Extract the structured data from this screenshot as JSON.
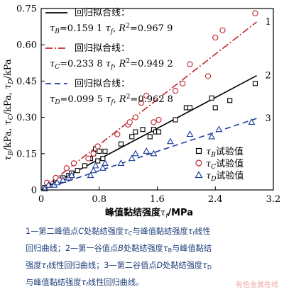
{
  "chart_data": {
    "type": "scatter",
    "xlabel": "峰值黏结强度τf/MPa",
    "ylabel": "τB/kPa, τC/kPa, τD/kPa",
    "xlim": [
      0,
      3.2
    ],
    "ylim": [
      0,
      0.75
    ],
    "xticks": [
      0,
      0.8,
      1.6,
      2.4,
      3.2
    ],
    "yticks": [
      0,
      0.15,
      0.3,
      0.45,
      0.6,
      0.75
    ],
    "xtick_labels": [
      "0",
      "0.8",
      "1.6",
      "2.4",
      "3.2"
    ],
    "ytick_labels": [
      "0",
      "0.15",
      "0.30",
      "0.45",
      "0.60",
      "0.75"
    ],
    "legend_position": "bottom-right",
    "fits": [
      {
        "title": "回归拟合线：",
        "eq_var": "τB",
        "slope_text": "0.159 1",
        "r2_text": "0.967 9",
        "slope": 0.1591,
        "line_label": "2",
        "color": "#000000",
        "dash": ""
      },
      {
        "title": "回归拟合线：",
        "eq_var": "τC",
        "slope_text": "0.233 8",
        "r2_text": "0.949 2",
        "slope": 0.2338,
        "line_label": "1",
        "color": "#c0272d",
        "dash": "10,3,2,3"
      },
      {
        "title": "回归拟合线：",
        "eq_var": "τD",
        "slope_text": "0.099 5",
        "r2_text": "0.962 8",
        "slope": 0.0995,
        "line_label": "3",
        "color": "#1c3c9c",
        "dash": "8,5"
      }
    ],
    "series": [
      {
        "name": "τB试验值",
        "marker": "square",
        "color": "#000000",
        "x": [
          0.05,
          0.1,
          0.2,
          0.22,
          0.3,
          0.38,
          0.42,
          0.5,
          0.6,
          0.68,
          0.72,
          0.75,
          0.78,
          0.8,
          0.85,
          0.88,
          1.1,
          1.25,
          1.3,
          1.4,
          1.5,
          1.55,
          1.58,
          1.62,
          1.85,
          2.0,
          2.05,
          2.35,
          2.4,
          2.6,
          2.95
        ],
        "y": [
          0.01,
          0.02,
          0.04,
          0.04,
          0.05,
          0.06,
          0.07,
          0.08,
          0.1,
          0.13,
          0.15,
          0.17,
          0.12,
          0.16,
          0.13,
          0.16,
          0.19,
          0.22,
          0.24,
          0.25,
          0.22,
          0.25,
          0.24,
          0.24,
          0.29,
          0.34,
          0.34,
          0.38,
          0.34,
          0.37,
          0.44
        ]
      },
      {
        "name": "τC试验值",
        "marker": "circle",
        "color": "#c0272d",
        "x": [
          0.08,
          0.2,
          0.25,
          0.35,
          0.4,
          0.45,
          0.65,
          0.72,
          0.78,
          1.05,
          1.2,
          1.22,
          1.3,
          1.38,
          1.45,
          1.55,
          1.62,
          1.85,
          1.95,
          2.05,
          2.3,
          2.4,
          2.5,
          2.95
        ],
        "y": [
          0.03,
          0.05,
          0.04,
          0.09,
          0.05,
          0.11,
          0.13,
          0.15,
          0.18,
          0.23,
          0.27,
          0.28,
          0.3,
          0.36,
          0.39,
          0.28,
          0.29,
          0.41,
          0.44,
          0.52,
          0.47,
          0.63,
          0.66,
          0.73
        ]
      },
      {
        "name": "τD试验值",
        "marker": "triangle",
        "color": "#1c3c9c",
        "x": [
          0.05,
          0.1,
          0.18,
          0.22,
          0.3,
          0.38,
          0.42,
          0.68,
          0.72,
          0.75,
          0.85,
          0.88,
          1.1,
          1.25,
          1.3,
          1.45,
          1.55,
          1.78,
          2.05,
          2.35,
          2.45,
          2.9
        ],
        "y": [
          0.005,
          0.02,
          0.02,
          0.03,
          0.04,
          0.05,
          0.06,
          0.06,
          0.08,
          0.1,
          0.09,
          0.11,
          0.11,
          0.13,
          0.15,
          0.16,
          0.15,
          0.2,
          0.23,
          0.22,
          0.25,
          0.28
        ]
      }
    ]
  },
  "caption": {
    "l1_a": "1—第二峰值点",
    "l1_b": "C",
    "l1_c": "处黏结强度",
    "l1_d": "τ",
    "l1_e": "C",
    "l1_f": "与峰值黏结强度",
    "l1_g": "τ",
    "l1_h": "f",
    "l1_i": "线性",
    "l2": "回归曲线；2—第一谷值点",
    "l2_b": "B",
    "l2_c": "处黏结强度",
    "l2_d": "τ",
    "l2_e": "B",
    "l2_f": "与峰值黏结",
    "l3_a": "强度",
    "l3_b": "τ",
    "l3_c": "f",
    "l3_d": "线性回归曲线；3—第二谷值点",
    "l3_e": "D",
    "l3_f": "处黏结强度",
    "l3_g": "τ",
    "l3_h": "D",
    "l4_a": "与峰值黏结强度",
    "l4_b": "τ",
    "l4_c": "f",
    "l4_d": "线性回归曲线。"
  },
  "watermark": "有色金属在线"
}
